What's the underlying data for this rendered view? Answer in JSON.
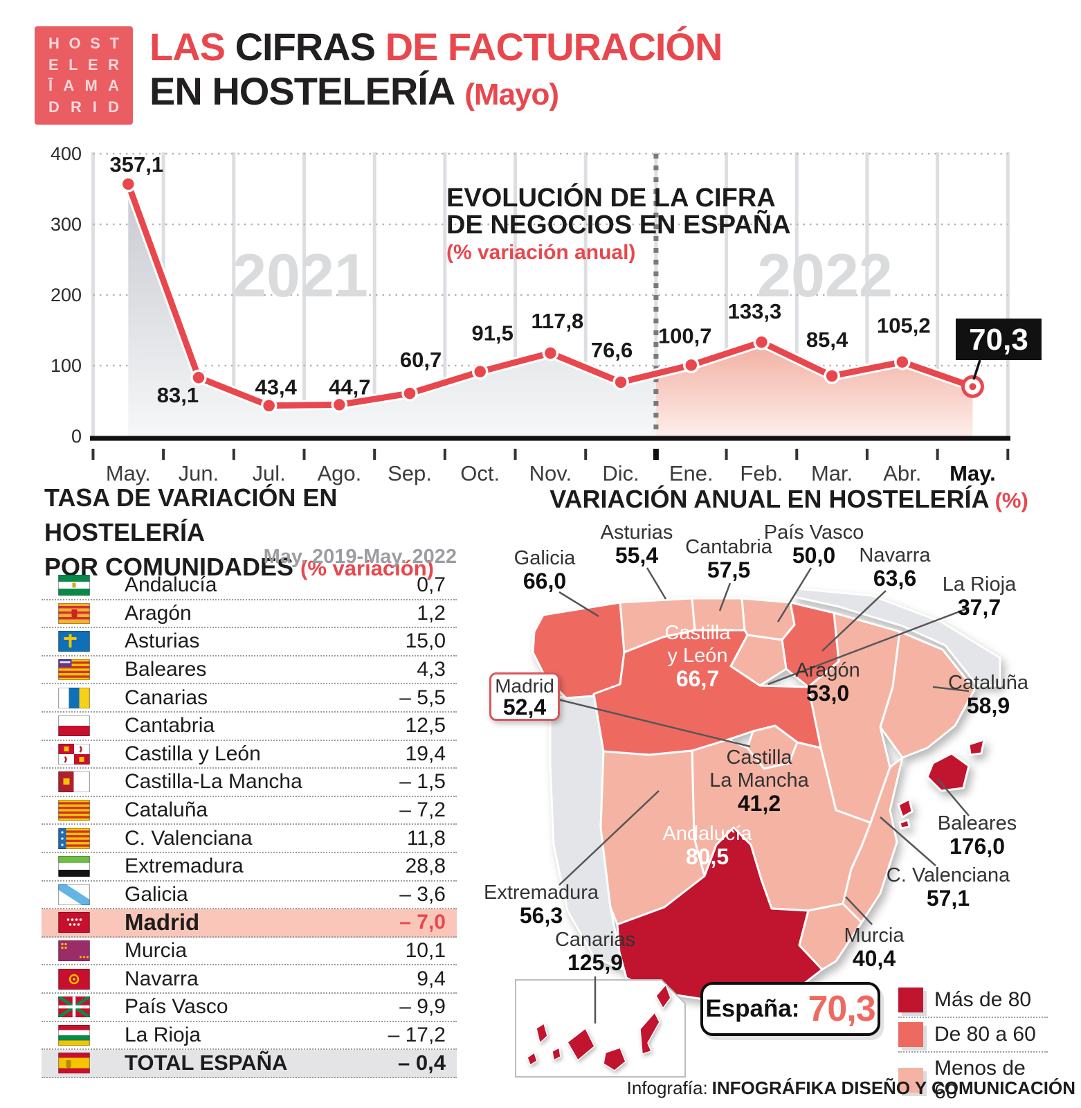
{
  "header": {
    "logo_lines": [
      "HOST",
      "ELER",
      "ĪAMA",
      "DRID"
    ],
    "title_line1_segments": [
      {
        "text": "LAS ",
        "color": "red"
      },
      {
        "text": "CIFRAS ",
        "color": "dark"
      },
      {
        "text": "DE FACTURACIÓN",
        "color": "red"
      }
    ],
    "title_line2": "EN HOSTELERÍA",
    "title_line2_suffix": "(Mayo)"
  },
  "chart_data": {
    "type": "line",
    "title_line1": "EVOLUCIÓN DE LA CIFRA",
    "title_line2": "DE NEGOCIOS EN ESPAÑA",
    "subtitle": "(% variación anual)",
    "x": [
      "May.",
      "Jun.",
      "Jul.",
      "Ago.",
      "Sep.",
      "Oct.",
      "Nov.",
      "Dic.",
      "Ene.",
      "Feb.",
      "Mar.",
      "Abr.",
      "May."
    ],
    "values": [
      357.1,
      83.1,
      43.4,
      44.7,
      60.7,
      91.5,
      117.8,
      76.6,
      100.7,
      133.3,
      85.4,
      105.2,
      70.3
    ],
    "labels": [
      "357,1",
      "83,1",
      "43,4",
      "44,7",
      "60,7",
      "91,5",
      "117,8",
      "76,6",
      "100,7",
      "133,3",
      "85,4",
      "105,2",
      "70,3"
    ],
    "year_left": "2021",
    "year_right": "2022",
    "year_split_after_index": 7,
    "ylim": [
      0,
      400
    ],
    "yticks": [
      "0",
      "100",
      "200",
      "300",
      "400"
    ],
    "grid": true,
    "highlight_last_label": "70,3",
    "line_color": "#e8474e"
  },
  "table": {
    "title1": "TASA DE VARIACIÓN EN HOSTELERÍA",
    "title2": "POR COMUNIDADES",
    "title2_red": "(% variación)",
    "period": "May. 2019-May. 2022",
    "rows": [
      {
        "flag": "andalucia",
        "name": "Andalucía",
        "value": "0,7"
      },
      {
        "flag": "aragon",
        "name": "Aragón",
        "value": "1,2"
      },
      {
        "flag": "asturias",
        "name": "Asturias",
        "value": "15,0"
      },
      {
        "flag": "baleares",
        "name": "Baleares",
        "value": "4,3"
      },
      {
        "flag": "canarias",
        "name": "Canarias",
        "value": "– 5,5"
      },
      {
        "flag": "cantabria",
        "name": "Cantabria",
        "value": "12,5"
      },
      {
        "flag": "castillaleon",
        "name": "Castilla y León",
        "value": "19,4"
      },
      {
        "flag": "castillamancha",
        "name": "Castilla-La Mancha",
        "value": "– 1,5"
      },
      {
        "flag": "cataluna",
        "name": "Cataluña",
        "value": "– 7,2"
      },
      {
        "flag": "valenciana",
        "name": "C. Valenciana",
        "value": "11,8"
      },
      {
        "flag": "extremadura",
        "name": "Extremadura",
        "value": "28,8"
      },
      {
        "flag": "galicia",
        "name": "Galicia",
        "value": "– 3,6"
      },
      {
        "flag": "madrid",
        "name": "Madrid",
        "value": "– 7,0",
        "highlight": "madrid"
      },
      {
        "flag": "murcia",
        "name": "Murcia",
        "value": "10,1"
      },
      {
        "flag": "navarra",
        "name": "Navarra",
        "value": "9,4"
      },
      {
        "flag": "paisvasco",
        "name": "País Vasco",
        "value": "– 9,9"
      },
      {
        "flag": "larioja",
        "name": "La Rioja",
        "value": "– 17,2"
      },
      {
        "flag": "espana",
        "name": "TOTAL ESPAÑA",
        "value": "– 0,4",
        "highlight": "total"
      }
    ]
  },
  "map": {
    "title": "VARIACIÓN ANUAL EN HOSTELERÍA",
    "title_red": "(%)",
    "espana_label": "España:",
    "espana_value": "70,3",
    "colors": {
      "dark": "#c0142f",
      "mid": "#ee6a61",
      "light": "#f5b3a3",
      "neutral": "#e3e5e8"
    },
    "legend": [
      {
        "label": "Más de 80",
        "bucket": "dark"
      },
      {
        "label": "De 80 a 60",
        "bucket": "mid"
      },
      {
        "label": "Menos de 60",
        "bucket": "light"
      }
    ],
    "regions": [
      {
        "id": "galicia",
        "name": "Galicia",
        "value": "66,0",
        "bucket": "mid"
      },
      {
        "id": "asturias",
        "name": "Asturias",
        "value": "55,4",
        "bucket": "light"
      },
      {
        "id": "cantabria",
        "name": "Cantabria",
        "value": "57,5",
        "bucket": "light"
      },
      {
        "id": "paisvasco",
        "name": "País Vasco",
        "value": "50,0",
        "bucket": "light"
      },
      {
        "id": "navarra",
        "name": "Navarra",
        "value": "63,6",
        "bucket": "mid"
      },
      {
        "id": "larioja",
        "name": "La Rioja",
        "value": "37,7",
        "bucket": "light"
      },
      {
        "id": "cyl",
        "name": "Castilla",
        "name2": "y León",
        "value": "66,7",
        "bucket": "mid",
        "inside": true,
        "light_text": true
      },
      {
        "id": "aragon",
        "name": "Aragón",
        "value": "53,0",
        "bucket": "light",
        "inside": true
      },
      {
        "id": "cataluna",
        "name": "Cataluña",
        "value": "58,9",
        "bucket": "light"
      },
      {
        "id": "madrid",
        "name": "Madrid",
        "value": "52,4",
        "bucket": "light",
        "boxed": true
      },
      {
        "id": "clm",
        "name": "Castilla",
        "name2": "La Mancha",
        "value": "41,2",
        "bucket": "light",
        "inside": true
      },
      {
        "id": "extremadura",
        "name": "Extremadura",
        "value": "56,3",
        "bucket": "light"
      },
      {
        "id": "valenciana",
        "name": "C. Valenciana",
        "value": "57,1",
        "bucket": "light"
      },
      {
        "id": "murcia",
        "name": "Murcia",
        "value": "40,4",
        "bucket": "light"
      },
      {
        "id": "andalucia",
        "name": "Andalucía",
        "value": "80,5",
        "bucket": "dark",
        "inside": true,
        "light_text": true
      },
      {
        "id": "baleares",
        "name": "Baleares",
        "value": "176,0",
        "bucket": "dark"
      },
      {
        "id": "canarias",
        "name": "Canarias",
        "value": "125,9",
        "bucket": "dark"
      }
    ]
  },
  "footer": {
    "prefix": "Infografía:",
    "text": "INFOGRÁFIKA DISEÑO Y COMUNICACIÓN"
  }
}
